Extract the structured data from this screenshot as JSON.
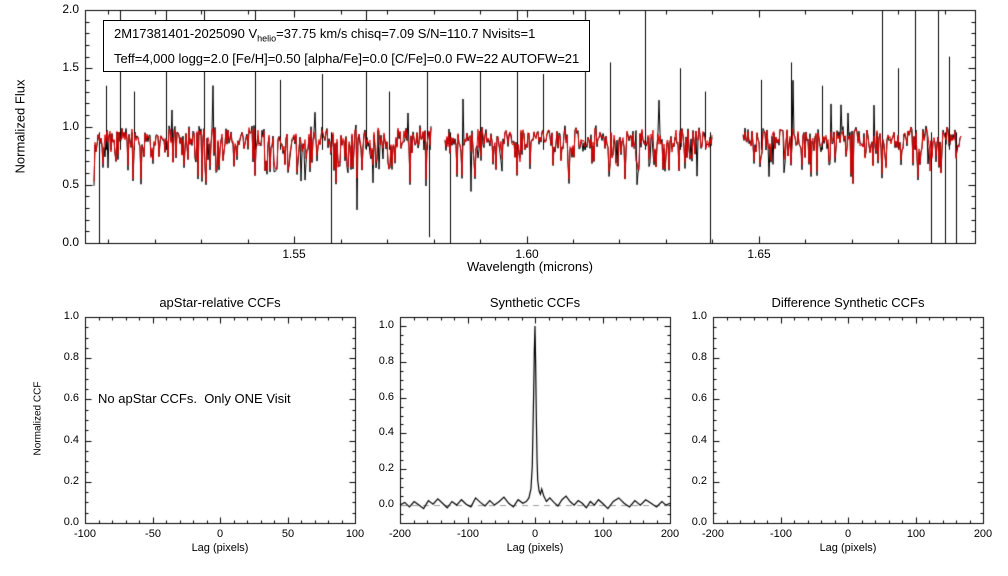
{
  "figure": {
    "background": "#ffffff",
    "frame_color": "#000000"
  },
  "annotation": {
    "id_and_v_pre": "2M17381401-2025090  V",
    "v_sub": "helio",
    "line1_rest": "=37.75 km/s  chisq=7.09  S/N=110.7  Nvisits=1",
    "line2": "Teff=4,000 logg=2.0 [Fe/H]=0.50 [alpha/Fe]=0.0 [C/Fe]=0.0 FW=22 AUTOFW=21"
  },
  "chart_data": [
    {
      "type": "line",
      "panel": "spectrum",
      "title": "",
      "xlabel": "Wavelength (microns)",
      "ylabel": "Normalized Flux",
      "xlim": [
        1.505,
        1.6965
      ],
      "ylim": [
        0.0,
        2.0
      ],
      "xticks": [
        1.55,
        1.6,
        1.65
      ],
      "xtick_labels": [
        "1.55",
        "1.60",
        "1.65"
      ],
      "x_minor": 0.01,
      "yticks": [
        0.0,
        0.5,
        1.0,
        1.5,
        2.0
      ],
      "ytick_labels": [
        "0.0",
        "0.5",
        "1.0",
        "1.5",
        "2.0"
      ],
      "y_minor": 0.1,
      "series": [
        {
          "name": "observed spectrum",
          "color": "#000000"
        },
        {
          "name": "best-fit synthetic spectrum",
          "color": "#dd0000"
        }
      ],
      "detector_segments": [
        [
          1.507,
          1.5795
        ],
        [
          1.5825,
          1.64
        ],
        [
          1.6465,
          1.6935
        ]
      ],
      "continuum": 0.9,
      "noise_seed": 7,
      "emission_spikes": [
        [
          1.5095,
          1.35
        ],
        [
          1.5125,
          2.0
        ],
        [
          1.5155,
          1.3
        ],
        [
          1.5225,
          2.0
        ],
        [
          1.5305,
          2.0
        ],
        [
          1.5415,
          2.0
        ],
        [
          1.547,
          1.4
        ],
        [
          1.556,
          1.45
        ],
        [
          1.5655,
          2.0
        ],
        [
          1.5705,
          1.3
        ],
        [
          1.5785,
          1.8
        ],
        [
          1.59,
          1.5
        ],
        [
          1.598,
          2.0
        ],
        [
          1.6035,
          1.45
        ],
        [
          1.6125,
          2.0
        ],
        [
          1.618,
          1.55
        ],
        [
          1.6255,
          2.0
        ],
        [
          1.633,
          1.5
        ],
        [
          1.6385,
          1.3
        ],
        [
          1.6505,
          1.4
        ],
        [
          1.657,
          1.55
        ],
        [
          1.6635,
          1.35
        ],
        [
          1.6765,
          2.0
        ],
        [
          1.68,
          1.5
        ],
        [
          1.6835,
          2.0
        ],
        [
          1.6885,
          2.0
        ],
        [
          1.691,
          1.6
        ]
      ],
      "deep_lines": [
        [
          1.508,
          0.0
        ],
        [
          1.558,
          0.0
        ],
        [
          1.579,
          0.05
        ],
        [
          1.5835,
          0.0
        ],
        [
          1.6395,
          0.0
        ],
        [
          1.687,
          0.0
        ],
        [
          1.69,
          0.0
        ],
        [
          1.6925,
          0.0
        ]
      ]
    },
    {
      "type": "line",
      "panel": "ccf-apstar",
      "title": "apStar-relative CCFs",
      "xlabel": "Lag (pixels)",
      "ylabel": "Normalized CCF",
      "xlim": [
        -100,
        100
      ],
      "xticks": [
        -100,
        -50,
        0,
        50,
        100
      ],
      "xtick_labels": [
        "-100",
        "-50",
        "0",
        "50",
        "100"
      ],
      "x_minor": 10,
      "ylim": [
        0.0,
        1.0
      ],
      "yticks": [
        0.0,
        0.2,
        0.4,
        0.6,
        0.8,
        1.0
      ],
      "ytick_labels": [
        "0.0",
        "0.2",
        "0.4",
        "0.6",
        "0.8",
        "1.0"
      ],
      "y_minor": 0.05,
      "message": "No apStar CCFs.  Only ONE Visit",
      "series": []
    },
    {
      "type": "line",
      "panel": "ccf-synthetic",
      "title": "Synthetic CCFs",
      "xlabel": "Lag (pixels)",
      "ylabel": "",
      "xlim": [
        -200,
        200
      ],
      "xticks": [
        -200,
        -100,
        0,
        100,
        200
      ],
      "xtick_labels": [
        "-200",
        "-100",
        "0",
        "100",
        "200"
      ],
      "x_minor": 20,
      "ylim": [
        -0.1,
        1.05
      ],
      "yticks": [
        0.0,
        0.2,
        0.4,
        0.6,
        0.8,
        1.0
      ],
      "ytick_labels": [
        "0.0",
        "0.2",
        "0.4",
        "0.6",
        "0.8",
        "1.0"
      ],
      "y_minor": 0.05,
      "zero_line": {
        "style": "dashed",
        "color": "#999999",
        "y": 0
      },
      "series": [
        {
          "name": "synthetic CCF",
          "color": "#000000",
          "points": [
            [
              -200,
              0.0
            ],
            [
              -193,
              0.015
            ],
            [
              -186,
              -0.01
            ],
            [
              -179,
              0.02
            ],
            [
              -172,
              0.0
            ],
            [
              -165,
              -0.02
            ],
            [
              -158,
              0.025
            ],
            [
              -151,
              0.005
            ],
            [
              -144,
              0.035
            ],
            [
              -137,
              0.01
            ],
            [
              -130,
              -0.015
            ],
            [
              -123,
              0.02
            ],
            [
              -116,
              0.0
            ],
            [
              -109,
              0.03
            ],
            [
              -102,
              0.005
            ],
            [
              -95,
              -0.01
            ],
            [
              -88,
              0.04
            ],
            [
              -81,
              0.015
            ],
            [
              -74,
              -0.005
            ],
            [
              -67,
              0.025
            ],
            [
              -60,
              0.0
            ],
            [
              -53,
              0.02
            ],
            [
              -46,
              0.045
            ],
            [
              -39,
              0.01
            ],
            [
              -32,
              -0.01
            ],
            [
              -25,
              0.03
            ],
            [
              -18,
              0.01
            ],
            [
              -13,
              0.02
            ],
            [
              -9,
              0.04
            ],
            [
              -6,
              0.09
            ],
            [
              -4,
              0.22
            ],
            [
              -2,
              0.62
            ],
            [
              -1,
              0.86
            ],
            [
              0,
              1.0
            ],
            [
              1,
              0.78
            ],
            [
              2,
              0.48
            ],
            [
              3,
              0.26
            ],
            [
              4,
              0.14
            ],
            [
              6,
              0.08
            ],
            [
              8,
              0.06
            ],
            [
              10,
              0.09
            ],
            [
              13,
              0.05
            ],
            [
              17,
              0.02
            ],
            [
              22,
              0.04
            ],
            [
              28,
              0.015
            ],
            [
              34,
              -0.005
            ],
            [
              40,
              0.03
            ],
            [
              46,
              0.05
            ],
            [
              52,
              0.02
            ],
            [
              58,
              0.0
            ],
            [
              64,
              0.025
            ],
            [
              70,
              0.01
            ],
            [
              76,
              -0.015
            ],
            [
              82,
              0.02
            ],
            [
              88,
              0.0
            ],
            [
              94,
              0.03
            ],
            [
              100,
              0.01
            ],
            [
              108,
              -0.02
            ],
            [
              116,
              0.02
            ],
            [
              124,
              0.04
            ],
            [
              132,
              0.01
            ],
            [
              140,
              -0.01
            ],
            [
              148,
              0.025
            ],
            [
              156,
              0.0
            ],
            [
              164,
              0.03
            ],
            [
              172,
              0.01
            ],
            [
              180,
              -0.01
            ],
            [
              188,
              0.02
            ],
            [
              194,
              0.0
            ],
            [
              200,
              0.01
            ]
          ]
        }
      ]
    },
    {
      "type": "line",
      "panel": "ccf-difference",
      "title": "Difference Synthetic CCFs",
      "xlabel": "Lag (pixels)",
      "ylabel": "",
      "xlim": [
        -200,
        200
      ],
      "xticks": [
        -200,
        -100,
        0,
        100,
        200
      ],
      "xtick_labels": [
        "-200",
        "-100",
        "0",
        "100",
        "200"
      ],
      "x_minor": 20,
      "ylim": [
        0.0,
        1.0
      ],
      "yticks": [
        0.0,
        0.2,
        0.4,
        0.6,
        0.8,
        1.0
      ],
      "ytick_labels": [
        "0.0",
        "0.2",
        "0.4",
        "0.6",
        "0.8",
        "1.0"
      ],
      "y_minor": 0.05,
      "series": []
    }
  ]
}
